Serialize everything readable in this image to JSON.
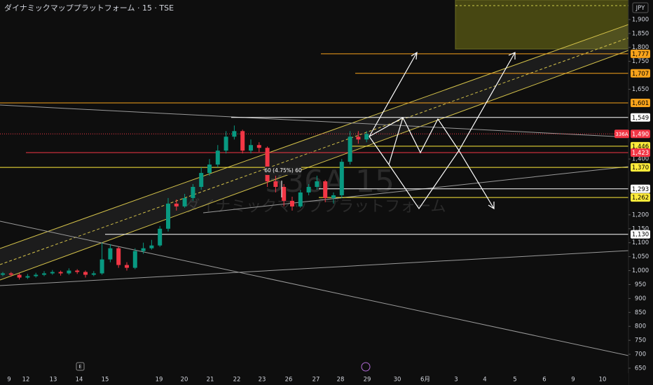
{
  "chart_data": {
    "type": "candlestick",
    "title": "ダイナミックマッププラットフォーム · 15 · TSE",
    "currency": "JPY",
    "watermark": {
      "symbol": "336A",
      "interval": "15",
      "name": "ダイナミックマッププラットフォーム"
    },
    "measure_label": "60 (4.75%) 60",
    "event_marker": "E",
    "up_color": "#089981",
    "down_color": "#f23645",
    "ylim": [
      635,
      1970
    ],
    "yticks": [
      {
        "value": 1900,
        "label": "1,900"
      },
      {
        "value": 1850,
        "label": "1,850"
      },
      {
        "value": 1800,
        "label": "1,800"
      },
      {
        "value": 1750,
        "label": "1,750"
      },
      {
        "value": 1650,
        "label": "1,650"
      },
      {
        "value": 1400,
        "label": "1,400"
      },
      {
        "value": 1200,
        "label": "1,200"
      },
      {
        "value": 1150,
        "label": "1,150"
      },
      {
        "value": 1100,
        "label": "1,100"
      },
      {
        "value": 1050,
        "label": "1,050"
      },
      {
        "value": 1000,
        "label": "1,000"
      },
      950,
      900,
      850,
      800,
      750,
      700,
      650
    ],
    "x_labels": [
      "9",
      "12",
      "13",
      "14",
      "15",
      "19",
      "20",
      "21",
      "22",
      "23",
      "26",
      "27",
      "28",
      "29",
      "30",
      "6月",
      "3",
      "4",
      "5",
      "6",
      "9",
      "10"
    ],
    "open": [
      985,
      990,
      985,
      975,
      980,
      985,
      990,
      995,
      990,
      1000,
      995,
      985,
      990,
      1040,
      1080,
      1020,
      1010,
      1070,
      1080,
      1090,
      1150,
      1240,
      1230,
      1260,
      1300,
      1350,
      1380,
      1430,
      1480,
      1500,
      1430,
      1450,
      1440,
      1320,
      1300,
      1250,
      1230,
      1280,
      1300,
      1320,
      1260,
      1270,
      1390,
      1480,
      1470
    ],
    "high": [
      995,
      995,
      990,
      988,
      992,
      998,
      1002,
      1000,
      1008,
      1005,
      1000,
      998,
      1100,
      1095,
      1085,
      1030,
      1080,
      1100,
      1110,
      1160,
      1260,
      1255,
      1275,
      1310,
      1370,
      1400,
      1450,
      1500,
      1520,
      1505,
      1470,
      1460,
      1445,
      1340,
      1310,
      1265,
      1290,
      1310,
      1340,
      1325,
      1280,
      1400,
      1500,
      1500,
      1500
    ],
    "low": [
      980,
      978,
      968,
      970,
      975,
      980,
      985,
      982,
      985,
      988,
      975,
      980,
      985,
      1030,
      1010,
      1000,
      1005,
      1060,
      1075,
      1085,
      1140,
      1215,
      1225,
      1250,
      1290,
      1340,
      1370,
      1420,
      1470,
      1420,
      1420,
      1425,
      1300,
      1280,
      1230,
      1215,
      1225,
      1270,
      1290,
      1245,
      1240,
      1260,
      1380,
      1455,
      1460
    ],
    "close": [
      990,
      985,
      975,
      980,
      985,
      990,
      995,
      990,
      1000,
      995,
      985,
      990,
      1040,
      1080,
      1020,
      1010,
      1070,
      1080,
      1090,
      1150,
      1240,
      1230,
      1260,
      1300,
      1350,
      1380,
      1430,
      1480,
      1500,
      1430,
      1450,
      1440,
      1320,
      1300,
      1250,
      1230,
      1280,
      1300,
      1320,
      1260,
      1270,
      1390,
      1480,
      1470,
      1490
    ],
    "levels": [
      {
        "value": 1777,
        "label": "1,777",
        "color": "#f7a21b"
      },
      {
        "value": 1707,
        "label": "1,707",
        "color": "#f7a21b"
      },
      {
        "value": 1601,
        "label": "1,601",
        "color": "#f7a21b"
      },
      {
        "value": 1549,
        "label": "1,549",
        "color": "#ffffff"
      },
      {
        "value": 1446,
        "label": "1,446",
        "color": "#ffeb3b"
      },
      {
        "value": 1423,
        "label": "1,423",
        "color": "#f23645"
      },
      {
        "value": 1370,
        "label": "1,370",
        "color": "#ffeb3b"
      },
      {
        "value": 1293,
        "label": "1,293",
        "color": "#ffffff"
      },
      {
        "value": 1262,
        "label": "1,262",
        "color": "#ffeb3b"
      },
      {
        "value": 1130,
        "label": "1,130",
        "color": "#ffffff"
      }
    ],
    "last_price": {
      "value": 1490,
      "label": "1,490",
      "symbol": "336A",
      "color": "#f23645"
    }
  }
}
